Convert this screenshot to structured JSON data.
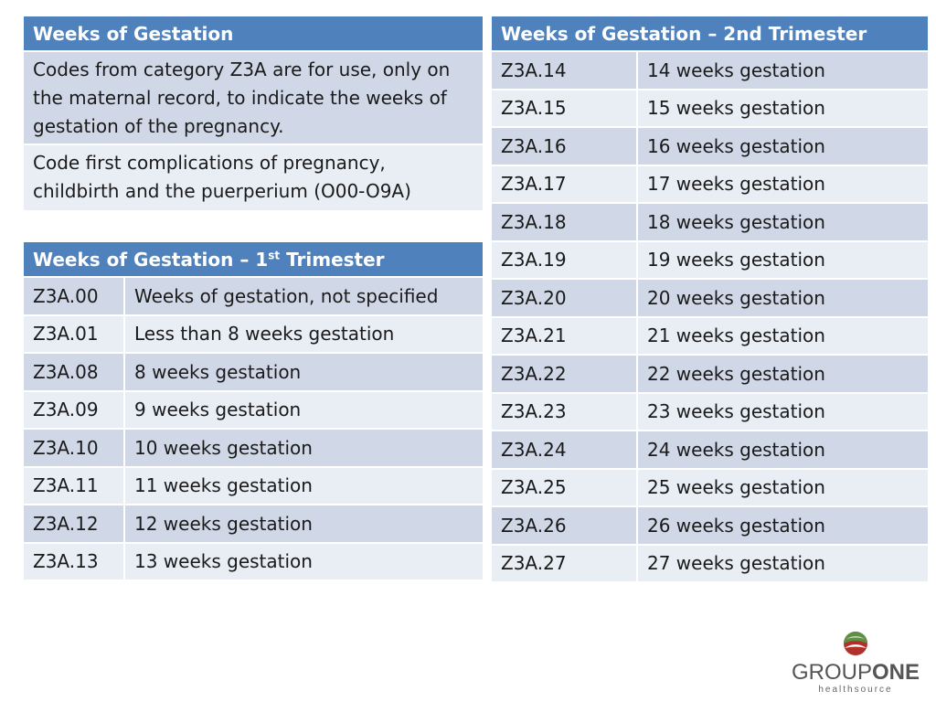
{
  "intro": {
    "title": "Weeks of Gestation",
    "p1": "Codes from category Z3A are for use, only on the maternal record, to indicate the weeks of gestation of the pregnancy.",
    "p2": "Code first complications of pregnancy, childbirth and the puerperium (O00-O9A)"
  },
  "first": {
    "title_pre": "Weeks of Gestation – 1",
    "title_sup": "st",
    "title_post": " Trimester",
    "rows": [
      {
        "code": "Z3A.00",
        "desc": "Weeks of gestation, not specified"
      },
      {
        "code": "Z3A.01",
        "desc": "Less than 8 weeks gestation"
      },
      {
        "code": "Z3A.08",
        "desc": "8 weeks gestation"
      },
      {
        "code": "Z3A.09",
        "desc": "9 weeks gestation"
      },
      {
        "code": "Z3A.10",
        "desc": "10 weeks gestation"
      },
      {
        "code": "Z3A.11",
        "desc": "11 weeks gestation"
      },
      {
        "code": "Z3A.12",
        "desc": "12 weeks gestation"
      },
      {
        "code": "Z3A.13",
        "desc": "13 weeks gestation"
      }
    ]
  },
  "second": {
    "title": "Weeks of Gestation – 2nd Trimester",
    "rows": [
      {
        "code": "Z3A.14",
        "desc": "14 weeks gestation"
      },
      {
        "code": "Z3A.15",
        "desc": "15 weeks gestation"
      },
      {
        "code": "Z3A.16",
        "desc": "16 weeks gestation"
      },
      {
        "code": "Z3A.17",
        "desc": "17 weeks gestation"
      },
      {
        "code": "Z3A.18",
        "desc": "18 weeks gestation"
      },
      {
        "code": "Z3A.19",
        "desc": "19 weeks gestation"
      },
      {
        "code": "Z3A.20",
        "desc": "20 weeks gestation"
      },
      {
        "code": "Z3A.21",
        "desc": "21 weeks gestation"
      },
      {
        "code": "Z3A.22",
        "desc": "22 weeks gestation"
      },
      {
        "code": "Z3A.23",
        "desc": "23 weeks gestation"
      },
      {
        "code": "Z3A.24",
        "desc": "24 weeks gestation"
      },
      {
        "code": "Z3A.25",
        "desc": "25 weeks gestation"
      },
      {
        "code": "Z3A.26",
        "desc": "26 weeks gestation"
      },
      {
        "code": "Z3A.27",
        "desc": "27 weeks gestation"
      }
    ]
  },
  "logo": {
    "word_a": "GROUP",
    "word_b": "ONE",
    "tagline": "healthsource",
    "icon": "globe-icon"
  },
  "colors": {
    "header": "#4f81bd",
    "row_dark": "#d0d8e8",
    "row_light": "#e9edf4",
    "logo_green": "#4a7a3a",
    "logo_red": "#b2302a",
    "logo_gray": "#555555"
  }
}
